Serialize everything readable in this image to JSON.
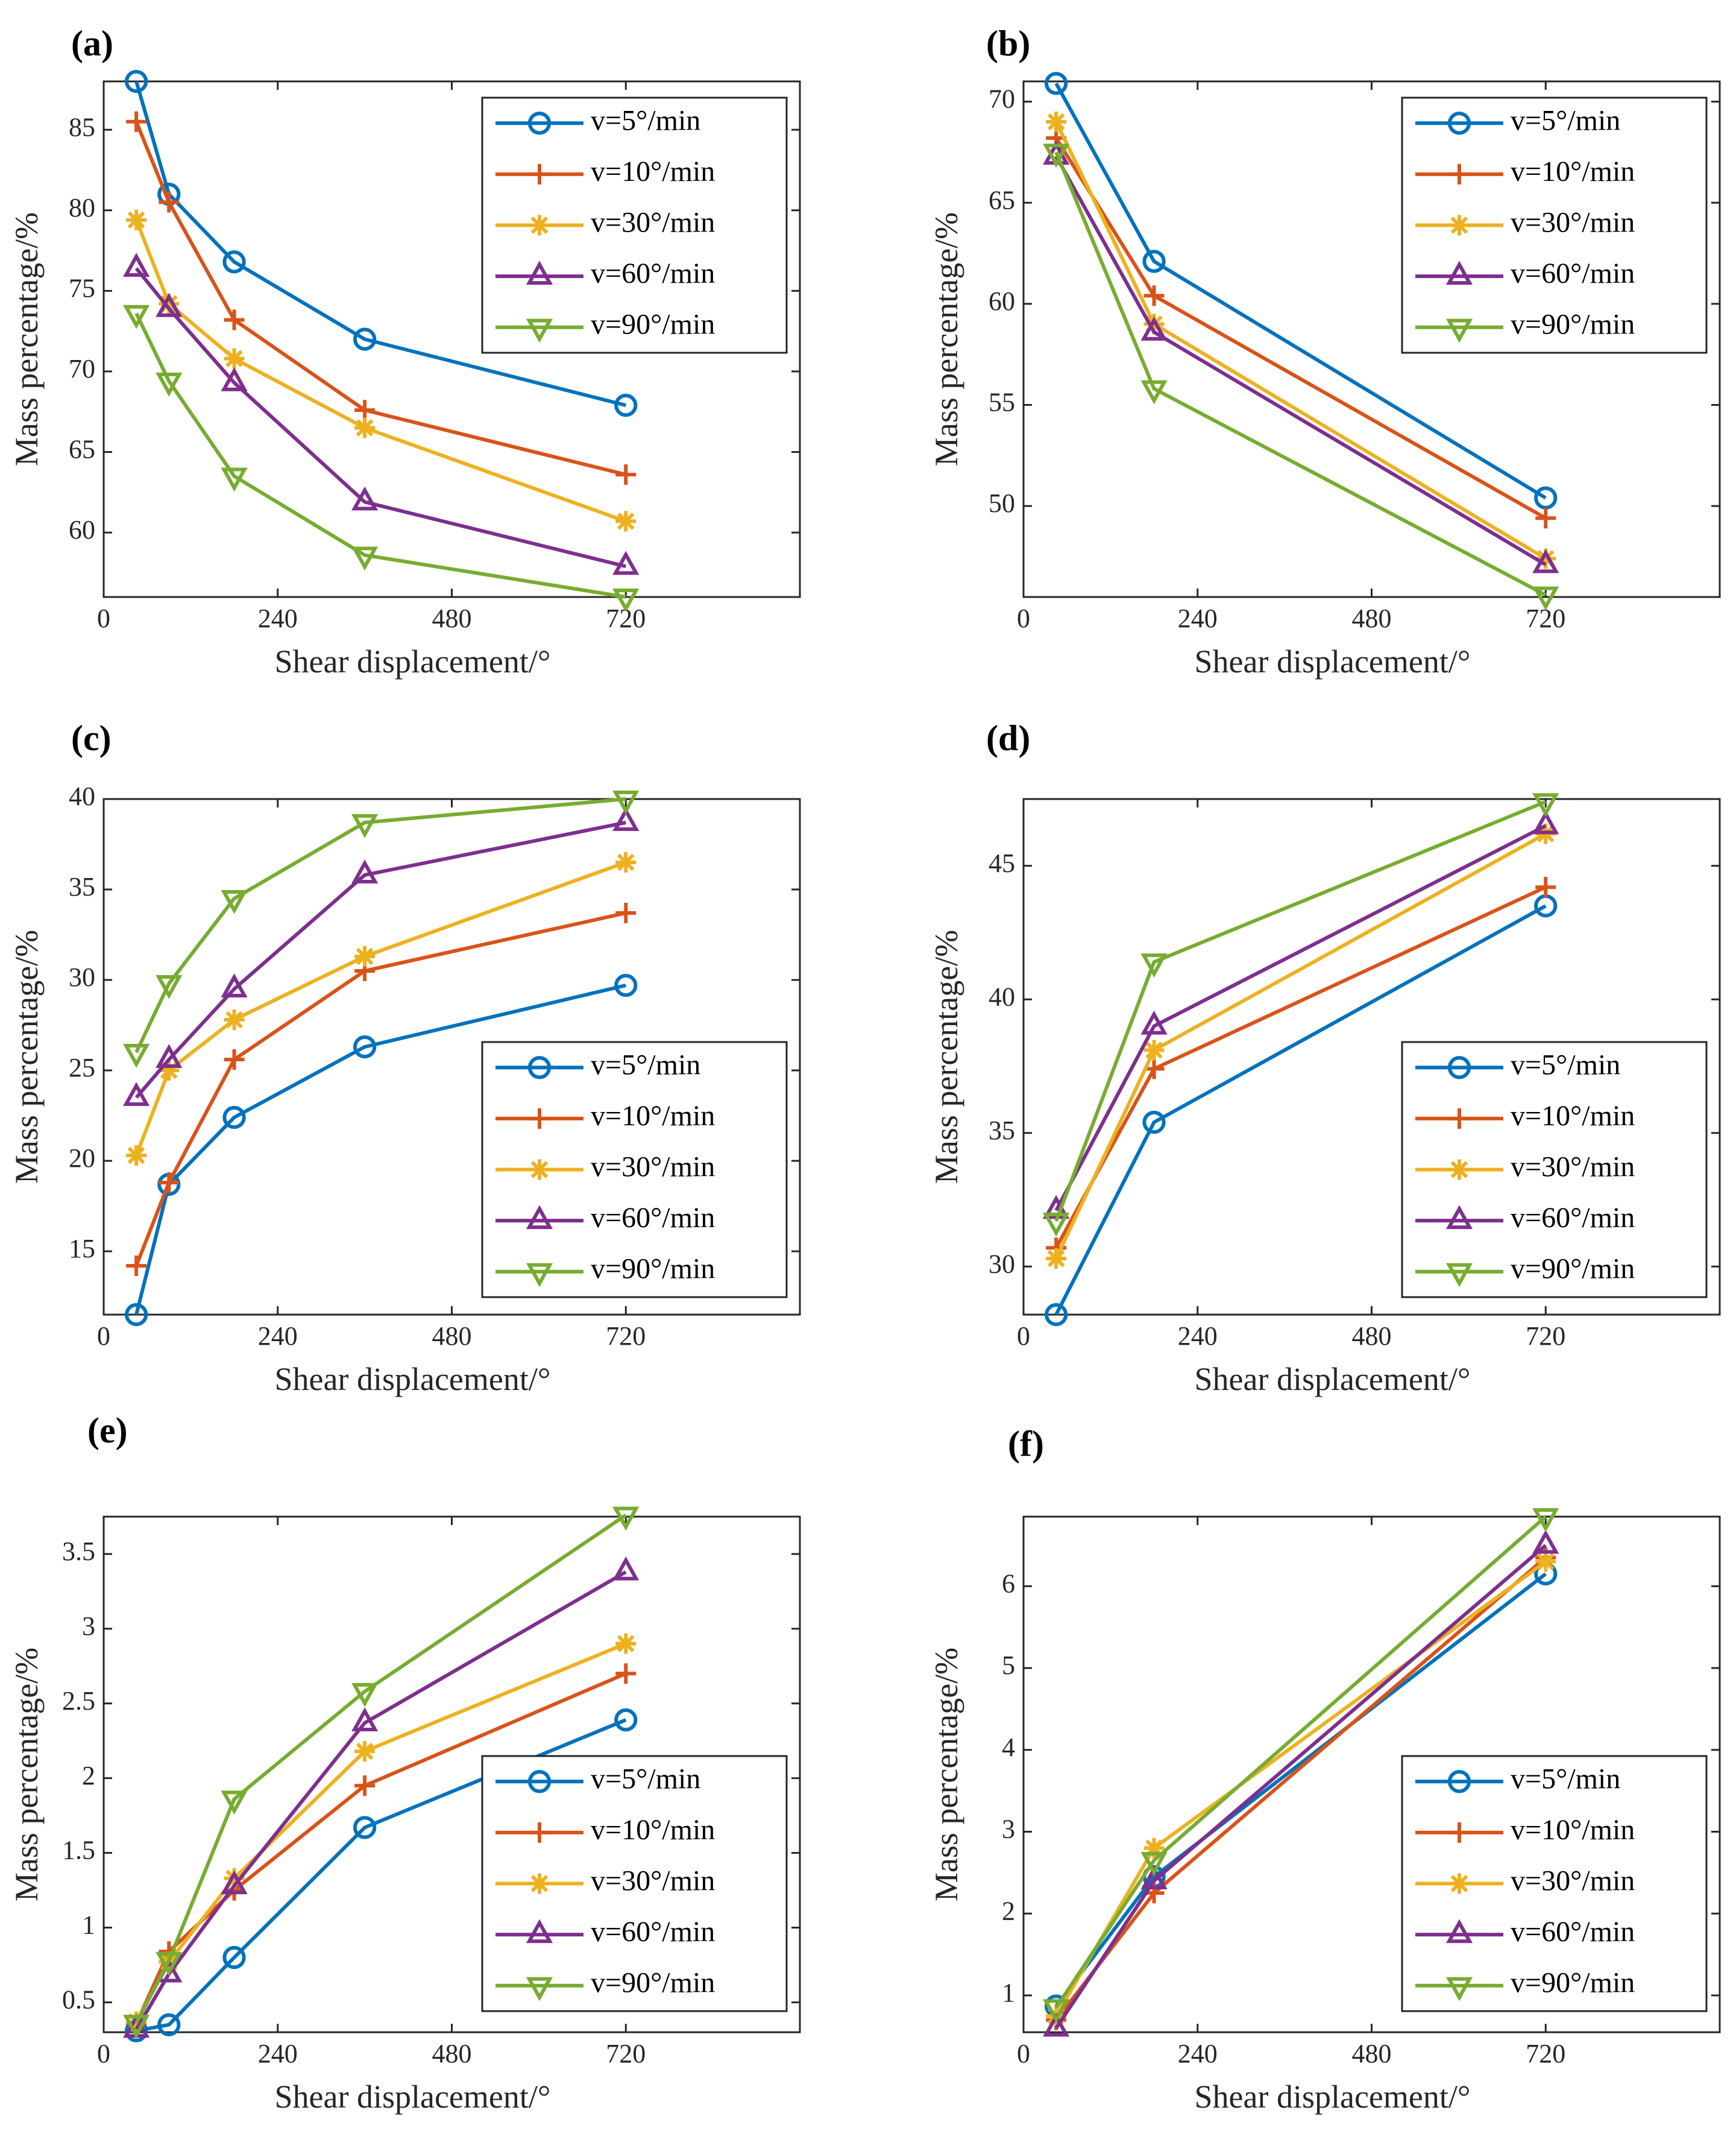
{
  "figure": {
    "series_styles": [
      {
        "name": "v=5°/min",
        "color": "#0072BD",
        "marker": "circle"
      },
      {
        "name": "v=10°/min",
        "color": "#D95319",
        "marker": "plus"
      },
      {
        "name": "v=30°/min",
        "color": "#EDB120",
        "marker": "asterisk"
      },
      {
        "name": "v=60°/min",
        "color": "#7E2F8E",
        "marker": "triangle-up"
      },
      {
        "name": "v=90°/min",
        "color": "#77AC30",
        "marker": "triangle-down"
      }
    ]
  },
  "chart_data": [
    {
      "panel_label": "(a)",
      "type": "line",
      "xlabel": "Shear displacement/°",
      "ylabel": "Mass percentage/%",
      "xlim": [
        0,
        960
      ],
      "ylim": [
        56,
        88
      ],
      "xticks": [
        0,
        240,
        480,
        720
      ],
      "xtick_labels": [
        "0",
        "240",
        "480",
        "720"
      ],
      "yticks": [
        60,
        65,
        70,
        75,
        80,
        85
      ],
      "ytick_labels": [
        "60",
        "65",
        "70",
        "75",
        "80",
        "85"
      ],
      "legend_position": "top-right",
      "grid": false,
      "series": [
        {
          "name": "v=5°/min",
          "x": [
            45,
            90,
            180,
            360,
            720
          ],
          "y": [
            88.0,
            81.0,
            76.8,
            72.0,
            67.9
          ]
        },
        {
          "name": "v=10°/min",
          "x": [
            45,
            90,
            180,
            360,
            720
          ],
          "y": [
            85.5,
            80.5,
            73.2,
            67.6,
            63.6
          ]
        },
        {
          "name": "v=30°/min",
          "x": [
            45,
            90,
            180,
            360,
            720
          ],
          "y": [
            79.4,
            74.2,
            70.8,
            66.5,
            60.7
          ]
        },
        {
          "name": "v=60°/min",
          "x": [
            45,
            90,
            180,
            360,
            720
          ],
          "y": [
            76.4,
            73.9,
            69.3,
            61.9,
            57.9
          ]
        },
        {
          "name": "v=90°/min",
          "x": [
            45,
            90,
            180,
            360,
            720
          ],
          "y": [
            73.6,
            69.4,
            63.5,
            58.6,
            56.0
          ]
        }
      ]
    },
    {
      "panel_label": "(b)",
      "type": "line",
      "xlabel": "Shear displacement/°",
      "ylabel": "Mass percentage/%",
      "xlim": [
        0,
        960
      ],
      "ylim": [
        45.5,
        71
      ],
      "xticks": [
        0,
        240,
        480,
        720
      ],
      "xtick_labels": [
        "0",
        "240",
        "480",
        "720"
      ],
      "yticks": [
        50,
        55,
        60,
        65,
        70
      ],
      "ytick_labels": [
        "50",
        "55",
        "60",
        "65",
        "70"
      ],
      "legend_position": "top-right",
      "grid": false,
      "series": [
        {
          "name": "v=5°/min",
          "x": [
            45,
            180,
            720
          ],
          "y": [
            70.9,
            62.1,
            50.4
          ]
        },
        {
          "name": "v=10°/min",
          "x": [
            45,
            180,
            720
          ],
          "y": [
            68.2,
            60.4,
            49.4
          ]
        },
        {
          "name": "v=30°/min",
          "x": [
            45,
            180,
            720
          ],
          "y": [
            69.0,
            59.0,
            47.4
          ]
        },
        {
          "name": "v=60°/min",
          "x": [
            45,
            180,
            720
          ],
          "y": [
            67.3,
            58.6,
            47.1
          ]
        },
        {
          "name": "v=90°/min",
          "x": [
            45,
            180,
            720
          ],
          "y": [
            67.5,
            55.8,
            45.6
          ]
        }
      ]
    },
    {
      "panel_label": "(c)",
      "type": "line",
      "xlabel": "Shear displacement/°",
      "ylabel": "Mass percentage/%",
      "xlim": [
        0,
        960
      ],
      "ylim": [
        11.5,
        40
      ],
      "xticks": [
        0,
        240,
        480,
        720
      ],
      "xtick_labels": [
        "0",
        "240",
        "480",
        "720"
      ],
      "yticks": [
        15,
        20,
        25,
        30,
        35,
        40
      ],
      "ytick_labels": [
        "15",
        "20",
        "25",
        "30",
        "35",
        "40"
      ],
      "legend_position": "bottom-right",
      "grid": false,
      "series": [
        {
          "name": "v=5°/min",
          "x": [
            45,
            90,
            180,
            360,
            720
          ],
          "y": [
            11.5,
            18.7,
            22.4,
            26.3,
            29.7
          ]
        },
        {
          "name": "v=10°/min",
          "x": [
            45,
            90,
            180,
            360,
            720
          ],
          "y": [
            14.2,
            18.8,
            25.6,
            30.5,
            33.7
          ]
        },
        {
          "name": "v=30°/min",
          "x": [
            45,
            90,
            180,
            360,
            720
          ],
          "y": [
            20.3,
            25.0,
            27.8,
            31.3,
            36.5
          ]
        },
        {
          "name": "v=60°/min",
          "x": [
            45,
            90,
            180,
            360,
            720
          ],
          "y": [
            23.5,
            25.6,
            29.5,
            35.8,
            38.7
          ]
        },
        {
          "name": "v=90°/min",
          "x": [
            45,
            90,
            180,
            360,
            720
          ],
          "y": [
            26.0,
            29.8,
            34.5,
            38.7,
            40.0
          ]
        }
      ]
    },
    {
      "panel_label": "(d)",
      "type": "line",
      "xlabel": "Shear displacement/°",
      "ylabel": "Mass percentage/%",
      "xlim": [
        0,
        960
      ],
      "ylim": [
        28.2,
        47.5
      ],
      "xticks": [
        0,
        240,
        480,
        720
      ],
      "xtick_labels": [
        "0",
        "240",
        "480",
        "720"
      ],
      "yticks": [
        30,
        35,
        40,
        45
      ],
      "ytick_labels": [
        "30",
        "35",
        "40",
        "45"
      ],
      "legend_position": "bottom-right",
      "grid": false,
      "series": [
        {
          "name": "v=5°/min",
          "x": [
            45,
            180,
            720
          ],
          "y": [
            28.2,
            35.4,
            43.5
          ]
        },
        {
          "name": "v=10°/min",
          "x": [
            45,
            180,
            720
          ],
          "y": [
            30.7,
            37.4,
            44.2
          ]
        },
        {
          "name": "v=30°/min",
          "x": [
            45,
            180,
            720
          ],
          "y": [
            30.3,
            38.1,
            46.2
          ]
        },
        {
          "name": "v=60°/min",
          "x": [
            45,
            180,
            720
          ],
          "y": [
            32.1,
            39.0,
            46.5
          ]
        },
        {
          "name": "v=90°/min",
          "x": [
            45,
            180,
            720
          ],
          "y": [
            31.7,
            41.4,
            47.4
          ]
        }
      ]
    },
    {
      "panel_label": "(e)",
      "type": "line",
      "xlabel": "Shear displacement/°",
      "ylabel": "Mass percentage/%",
      "xlim": [
        0,
        960
      ],
      "ylim": [
        0.3,
        3.75
      ],
      "xticks": [
        0,
        240,
        480,
        720
      ],
      "xtick_labels": [
        "0",
        "240",
        "480",
        "720"
      ],
      "yticks": [
        0.5,
        1,
        1.5,
        2,
        2.5,
        3,
        3.5
      ],
      "ytick_labels": [
        "0.5",
        "1",
        "1.5",
        "2",
        "2.5",
        "3",
        "3.5"
      ],
      "legend_position": "bottom-right",
      "grid": false,
      "series": [
        {
          "name": "v=5°/min",
          "x": [
            45,
            90,
            180,
            360,
            720
          ],
          "y": [
            0.31,
            0.35,
            0.8,
            1.67,
            2.39
          ]
        },
        {
          "name": "v=10°/min",
          "x": [
            45,
            90,
            180,
            360,
            720
          ],
          "y": [
            0.36,
            0.84,
            1.25,
            1.95,
            2.7
          ]
        },
        {
          "name": "v=30°/min",
          "x": [
            45,
            90,
            180,
            360,
            720
          ],
          "y": [
            0.37,
            0.77,
            1.33,
            2.18,
            2.9
          ]
        },
        {
          "name": "v=60°/min",
          "x": [
            45,
            90,
            180,
            360,
            720
          ],
          "y": [
            0.32,
            0.69,
            1.28,
            2.37,
            3.38
          ]
        },
        {
          "name": "v=90°/min",
          "x": [
            45,
            90,
            180,
            360,
            720
          ],
          "y": [
            0.36,
            0.78,
            1.86,
            2.58,
            3.76
          ]
        }
      ]
    },
    {
      "panel_label": "(f)",
      "type": "line",
      "xlabel": "Shear displacement/°",
      "ylabel": "Mass percentage/%",
      "xlim": [
        0,
        960
      ],
      "ylim": [
        0.55,
        6.85
      ],
      "xticks": [
        0,
        240,
        480,
        720
      ],
      "xtick_labels": [
        "0",
        "240",
        "480",
        "720"
      ],
      "yticks": [
        1,
        2,
        3,
        4,
        5,
        6
      ],
      "ytick_labels": [
        "1",
        "2",
        "3",
        "4",
        "5",
        "6"
      ],
      "legend_position": "bottom-right",
      "grid": false,
      "series": [
        {
          "name": "v=5°/min",
          "x": [
            45,
            180,
            720
          ],
          "y": [
            0.87,
            2.45,
            6.15
          ]
        },
        {
          "name": "v=10°/min",
          "x": [
            45,
            180,
            720
          ],
          "y": [
            0.7,
            2.25,
            6.35
          ]
        },
        {
          "name": "v=30°/min",
          "x": [
            45,
            180,
            720
          ],
          "y": [
            0.75,
            2.8,
            6.3
          ]
        },
        {
          "name": "v=60°/min",
          "x": [
            45,
            180,
            720
          ],
          "y": [
            0.6,
            2.4,
            6.5
          ]
        },
        {
          "name": "v=90°/min",
          "x": [
            45,
            180,
            720
          ],
          "y": [
            0.85,
            2.65,
            6.85
          ]
        }
      ]
    }
  ]
}
